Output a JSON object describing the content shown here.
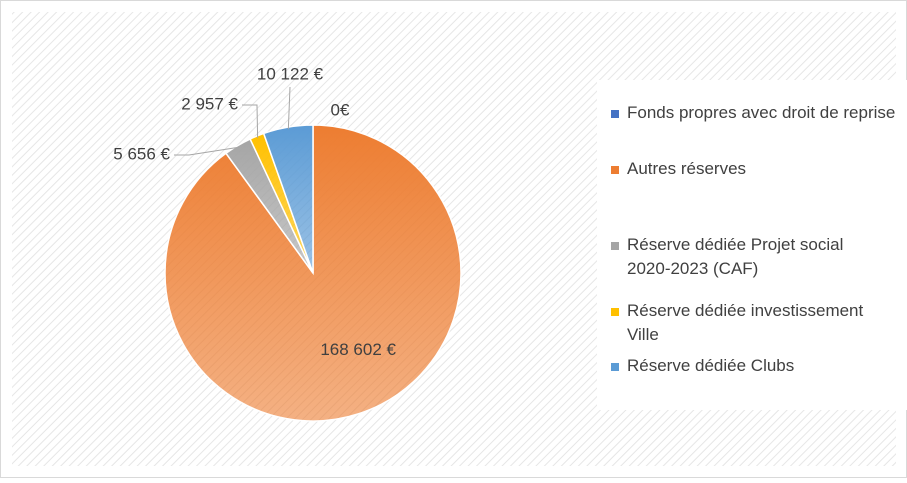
{
  "chart_data": {
    "type": "pie",
    "categories": [
      "Fonds propres avec droit de reprise",
      "Autres réserves",
      "Réserve dédiée Projet social 2020-2023 (CAF)",
      "Réserve dédiée investissement Ville",
      "Réserve dédiée Clubs"
    ],
    "values": [
      0,
      168602,
      5656,
      2957,
      10122
    ],
    "value_labels": [
      "0€",
      "168 602 €",
      "5 656 €",
      "2 957 €",
      "10 122 €"
    ],
    "colors": [
      "#4472c4",
      "#ed7d31",
      "#a5a5a5",
      "#ffc000",
      "#5b9bd5"
    ],
    "legend": "right"
  }
}
